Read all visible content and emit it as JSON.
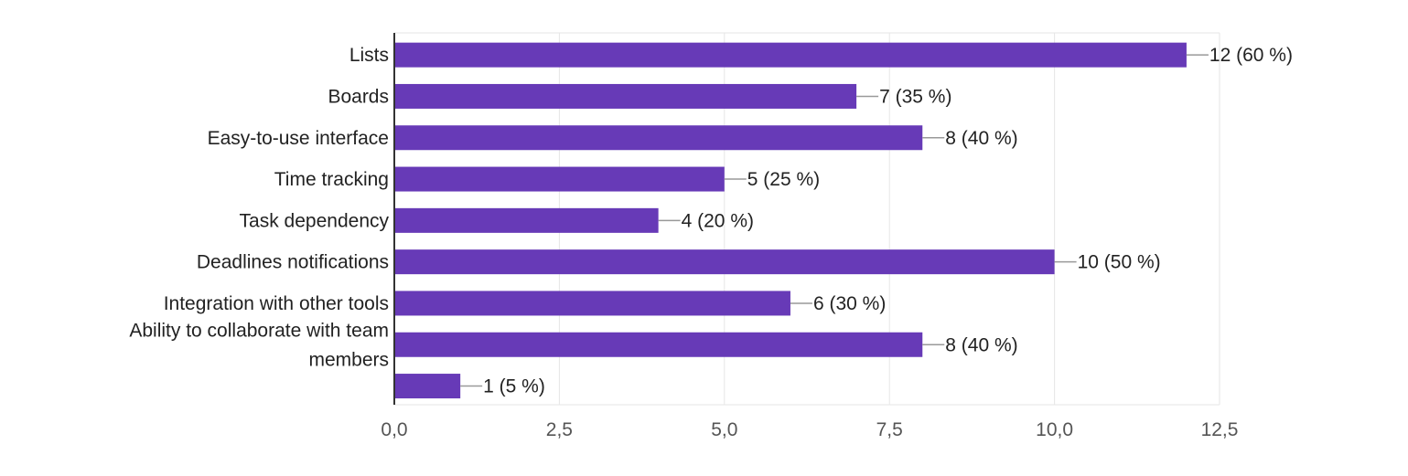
{
  "chart_data": {
    "type": "bar",
    "orientation": "horizontal",
    "categories": [
      "Lists",
      "Boards",
      "Easy-to-use interface",
      "Time tracking",
      "Task dependency",
      "Deadlines notifications",
      "Integration with other tools",
      "Ability to collaborate with team members",
      ""
    ],
    "values": [
      12,
      7,
      8,
      5,
      4,
      10,
      6,
      8,
      1
    ],
    "value_labels": [
      "12 (60 %)",
      "7 (35 %)",
      "8 (40 %)",
      "5 (25 %)",
      "4 (20 %)",
      "10 (50 %)",
      "6 (30 %)",
      "8 (40 %)",
      "1 (5 %)"
    ],
    "xlim": [
      0,
      12.5
    ],
    "x_ticks": [
      0,
      2.5,
      5,
      7.5,
      10,
      12.5
    ],
    "x_tick_labels": [
      "0,0",
      "2,5",
      "5,0",
      "7,5",
      "10,0",
      "12,5"
    ],
    "grid": true,
    "title": "",
    "xlabel": "",
    "ylabel": "",
    "bar_color": "#673ab7"
  }
}
